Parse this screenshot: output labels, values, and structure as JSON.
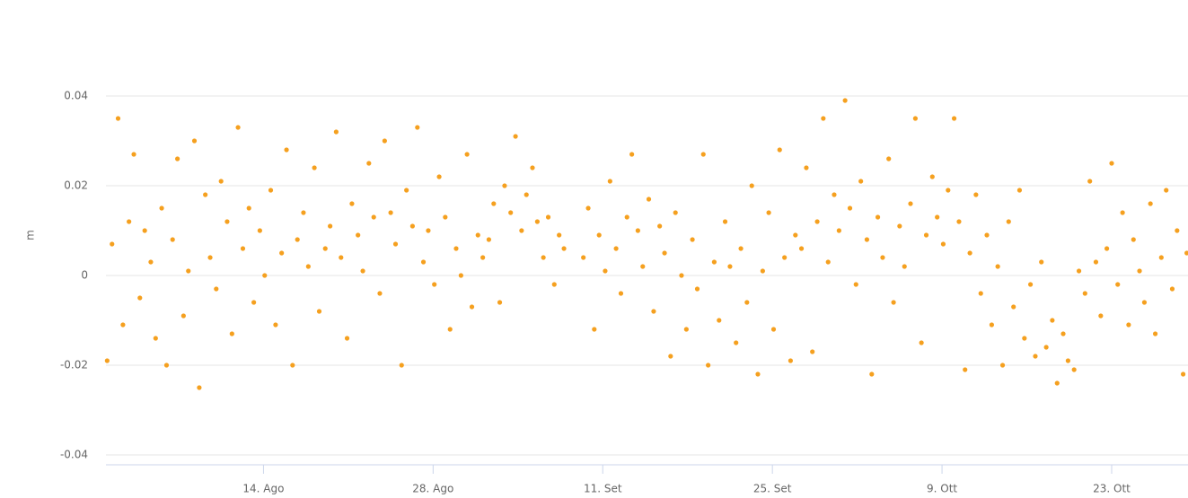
{
  "chart_data": {
    "type": "scatter",
    "y_axis_label": "m",
    "x": [
      0.1,
      0.5,
      1.0,
      1.4,
      1.9,
      2.3,
      2.8,
      3.2,
      3.7,
      4.1,
      4.6,
      5.0,
      5.5,
      5.9,
      6.4,
      6.8,
      7.3,
      7.7,
      8.2,
      8.6,
      9.1,
      9.5,
      10.0,
      10.4,
      10.9,
      11.3,
      11.8,
      12.2,
      12.7,
      13.1,
      13.6,
      14.0,
      14.5,
      14.9,
      15.4,
      15.8,
      16.3,
      16.7,
      17.2,
      17.6,
      18.1,
      18.5,
      19.0,
      19.4,
      19.9,
      20.3,
      20.8,
      21.2,
      21.7,
      22.1,
      22.6,
      23.0,
      23.5,
      23.9,
      24.4,
      24.8,
      25.3,
      25.7,
      26.2,
      26.6,
      27.1,
      27.5,
      28.0,
      28.4,
      28.9,
      29.3,
      29.8,
      30.2,
      30.7,
      31.1,
      31.6,
      32.0,
      32.5,
      32.9,
      33.4,
      33.8,
      34.3,
      34.7,
      35.2,
      35.6,
      36.1,
      36.5,
      37.0,
      37.4,
      37.8,
      39.4,
      39.8,
      40.3,
      40.7,
      41.2,
      41.6,
      42.1,
      42.5,
      43.0,
      43.4,
      43.9,
      44.3,
      44.8,
      45.2,
      45.7,
      46.1,
      46.6,
      47.0,
      47.5,
      47.9,
      48.4,
      48.8,
      49.3,
      49.7,
      50.2,
      50.6,
      51.1,
      51.5,
      52.0,
      52.4,
      52.9,
      53.3,
      53.8,
      54.2,
      54.7,
      55.1,
      55.6,
      56.0,
      56.5,
      56.9,
      57.4,
      57.8,
      58.3,
      58.7,
      59.2,
      59.6,
      60.1,
      60.5,
      61.0,
      61.4,
      61.9,
      62.3,
      62.8,
      63.2,
      63.7,
      64.1,
      64.6,
      65.0,
      65.5,
      65.9,
      66.4,
      66.8,
      67.3,
      67.7,
      68.2,
      68.6,
      69.1,
      69.5,
      70.0,
      70.4,
      70.9,
      71.3,
      71.8,
      72.2,
      72.7,
      73.1,
      73.6,
      74.0,
      74.5,
      74.9,
      75.4,
      75.8,
      76.3,
      76.7,
      77.2,
      77.6,
      78.1,
      78.5,
      79.0,
      79.4,
      79.9,
      80.3,
      80.8,
      81.2,
      81.7,
      82.1,
      82.6,
      83.0,
      83.5,
      83.9,
      84.4,
      84.8,
      85.3,
      85.7,
      86.2,
      86.6,
      87.1,
      87.5,
      88.0,
      88.4,
      88.9,
      89.2
    ],
    "series": [
      {
        "color": "#f5a01f",
        "values": [
          -0.019,
          0.007,
          0.035,
          -0.011,
          0.012,
          0.027,
          -0.005,
          0.01,
          0.003,
          -0.014,
          0.015,
          -0.02,
          0.008,
          0.026,
          -0.009,
          0.001,
          0.03,
          -0.025,
          0.018,
          0.004,
          -0.003,
          0.021,
          0.012,
          -0.013,
          0.033,
          0.006,
          0.015,
          -0.006,
          0.01,
          0.0,
          0.019,
          -0.011,
          0.005,
          0.028,
          -0.02,
          0.008,
          0.014,
          0.002,
          0.024,
          -0.008,
          0.006,
          0.011,
          0.032,
          0.004,
          -0.014,
          0.016,
          0.009,
          0.001,
          0.025,
          0.013,
          -0.004,
          0.03,
          0.014,
          0.007,
          -0.02,
          0.019,
          0.011,
          0.033,
          0.003,
          0.01,
          -0.002,
          0.022,
          0.013,
          -0.012,
          0.006,
          0.0,
          0.027,
          -0.007,
          0.009,
          0.004,
          0.008,
          0.016,
          -0.006,
          0.02,
          0.014,
          0.031,
          0.01,
          0.018,
          0.024,
          0.012,
          0.004,
          0.013,
          -0.002,
          0.009,
          0.006,
          0.004,
          0.015,
          -0.012,
          0.009,
          0.001,
          0.021,
          0.006,
          -0.004,
          0.013,
          0.027,
          0.01,
          0.002,
          0.017,
          -0.008,
          0.011,
          0.005,
          -0.018,
          0.014,
          0.0,
          -0.012,
          0.008,
          -0.003,
          0.027,
          -0.02,
          0.003,
          -0.01,
          0.012,
          0.002,
          -0.015,
          0.006,
          -0.006,
          0.02,
          -0.022,
          0.001,
          0.014,
          -0.012,
          0.028,
          0.004,
          -0.019,
          0.009,
          0.006,
          0.024,
          -0.017,
          0.012,
          0.035,
          0.003,
          0.018,
          0.01,
          0.039,
          0.015,
          -0.002,
          0.021,
          0.008,
          -0.022,
          0.013,
          0.004,
          0.026,
          -0.006,
          0.011,
          0.002,
          0.016,
          0.035,
          -0.015,
          0.009,
          0.022,
          0.013,
          0.007,
          0.019,
          0.035,
          0.012,
          -0.021,
          0.005,
          0.018,
          -0.004,
          0.009,
          -0.011,
          0.002,
          -0.02,
          0.012,
          -0.007,
          0.019,
          -0.014,
          -0.002,
          -0.018,
          0.003,
          -0.016,
          -0.01,
          -0.024,
          -0.013,
          -0.019,
          -0.021,
          0.001,
          -0.004,
          0.021,
          0.003,
          -0.009,
          0.006,
          0.025,
          -0.002,
          0.014,
          -0.011,
          0.008,
          0.001,
          -0.006,
          0.016,
          -0.013,
          0.004,
          0.019,
          -0.003,
          0.01,
          -0.022,
          0.005
        ]
      }
    ],
    "xlim": [
      0,
      89.3
    ],
    "xticks": [
      {
        "value": 13,
        "label": "14. Ago"
      },
      {
        "value": 27,
        "label": "28. Ago"
      },
      {
        "value": 41,
        "label": "11. Set"
      },
      {
        "value": 55,
        "label": "25. Set"
      },
      {
        "value": 69,
        "label": "9. Ott"
      },
      {
        "value": 83,
        "label": "23. Ott"
      }
    ],
    "ylim": [
      -0.042,
      0.058
    ],
    "yticks": [
      -0.04,
      -0.02,
      0,
      0.02,
      0.04
    ],
    "grid": true
  }
}
